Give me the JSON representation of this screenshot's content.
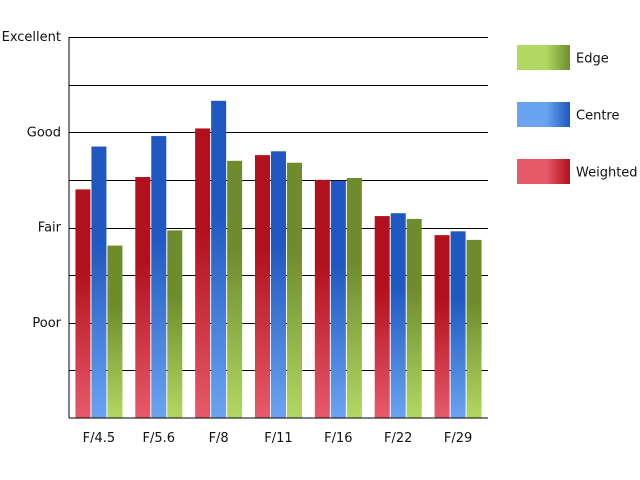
{
  "chart_data": {
    "type": "bar",
    "title": "",
    "xlabel": "",
    "ylabel": "",
    "categories": [
      "F/4.5",
      "F/5.6",
      "F/8",
      "F/11",
      "F/16",
      "F/22",
      "F/29"
    ],
    "series": [
      {
        "name": "Weighted",
        "values": [
          2.4,
          2.53,
          3.04,
          2.76,
          2.5,
          2.12,
          1.92
        ]
      },
      {
        "name": "Centre",
        "values": [
          2.85,
          2.96,
          3.33,
          2.8,
          2.49,
          2.15,
          1.96
        ]
      },
      {
        "name": "Edge",
        "values": [
          1.81,
          1.97,
          2.7,
          2.68,
          2.52,
          2.09,
          1.87
        ]
      }
    ],
    "y_ticks": [
      {
        "value": 1,
        "label": "Poor"
      },
      {
        "value": 2,
        "label": "Fair"
      },
      {
        "value": 3,
        "label": "Good"
      },
      {
        "value": 4,
        "label": "Excellent"
      }
    ],
    "ylim": [
      0,
      4
    ],
    "grid": true,
    "legend_position": "right",
    "legend_order": [
      "Edge",
      "Centre",
      "Weighted"
    ],
    "colors": {
      "Weighted": {
        "light": "#e85a6a",
        "dark": "#b2101c"
      },
      "Centre": {
        "light": "#6aa4f0",
        "dark": "#1e58c0"
      },
      "Edge": {
        "light": "#b2d862",
        "dark": "#6e8c2c"
      }
    }
  }
}
